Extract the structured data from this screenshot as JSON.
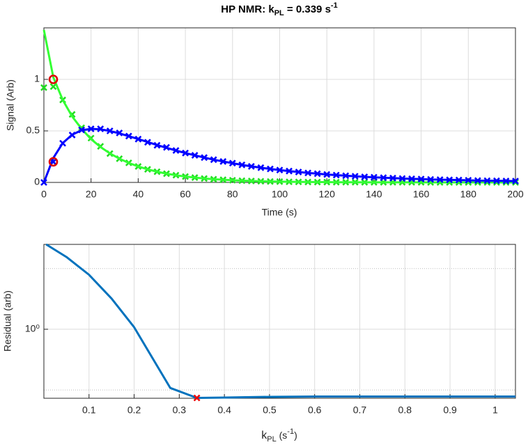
{
  "chart_data": [
    {
      "type": "line",
      "title": [
        "HP NMR: k",
        "PL",
        " = 0.339 s",
        "-1"
      ],
      "xlabel": "Time (s)",
      "ylabel": "Signal (Arb)",
      "x": [
        0,
        4,
        8,
        12,
        16,
        20,
        24,
        28,
        32,
        36,
        40,
        44,
        48,
        52,
        56,
        60,
        64,
        68,
        72,
        76,
        80,
        84,
        88,
        92,
        96,
        100,
        104,
        108,
        112,
        116,
        120,
        124,
        128,
        132,
        136,
        140,
        144,
        148,
        152,
        156,
        160,
        164,
        168,
        172,
        176,
        180,
        184,
        188,
        192,
        196,
        200
      ],
      "xlim": [
        0,
        200
      ],
      "xticks": [
        0,
        20,
        40,
        60,
        80,
        100,
        120,
        140,
        160,
        180,
        200
      ],
      "ylim": [
        0,
        1.5
      ],
      "yticks": [
        0,
        0.5,
        1
      ],
      "grid": true,
      "series": [
        {
          "color": "#22dd22",
          "marker": "x",
          "values": [
            0.92,
            0.93,
            0.8,
            0.66,
            0.53,
            0.43,
            0.35,
            0.28,
            0.23,
            0.19,
            0.155,
            0.127,
            0.104,
            0.085,
            0.07,
            0.057,
            0.047,
            0.038,
            0.031,
            0.026,
            0.021,
            0.017,
            0.014,
            0.011,
            0.009,
            0.008,
            0.006,
            0.005,
            0.004,
            0.003,
            0.003,
            0.002,
            0.002,
            0.002,
            0.001,
            0.001,
            0.001,
            0.001,
            0.001,
            0.001,
            0.001,
            0,
            0,
            0,
            0,
            0,
            0,
            0,
            0,
            0,
            0
          ]
        },
        {
          "color": "#33ff33",
          "marker": "line",
          "values": [
            1.48,
            1.02,
            0.8,
            0.64,
            0.52,
            0.42,
            0.344,
            0.282,
            0.231,
            0.189,
            0.155,
            0.127,
            0.104,
            0.085,
            0.07,
            0.057,
            0.047,
            0.038,
            0.031,
            0.026,
            0.021,
            0.017,
            0.014,
            0.011,
            0.009,
            0.008,
            0.006,
            0.005,
            0.004,
            0.003,
            0.003,
            0.002,
            0.002,
            0.002,
            0.001,
            0.001,
            0.001,
            0.001,
            0.001,
            0.001,
            0.001,
            0,
            0,
            0,
            0,
            0,
            0,
            0,
            0,
            0,
            0
          ]
        },
        {
          "color": "#0000ff",
          "marker": "line",
          "values": [
            0,
            0.237,
            0.382,
            0.464,
            0.506,
            0.52,
            0.515,
            0.499,
            0.476,
            0.449,
            0.421,
            0.392,
            0.363,
            0.336,
            0.31,
            0.285,
            0.263,
            0.241,
            0.221,
            0.203,
            0.187,
            0.17,
            0.156,
            0.143,
            0.131,
            0.12,
            0.11,
            0.101,
            0.092,
            0.085,
            0.077,
            0.071,
            0.065,
            0.06,
            0.054,
            0.05,
            0.046,
            0.042,
            0.038,
            0.035,
            0.033,
            0.029,
            0.027,
            0.025,
            0.023,
            0.021,
            0.018,
            0.017,
            0.016,
            0.014,
            0.013
          ]
        },
        {
          "color": "#0000ff",
          "marker": "x",
          "values": [
            0,
            0.2,
            0.38,
            0.46,
            0.51,
            0.52,
            0.52,
            0.5,
            0.48,
            0.45,
            0.42,
            0.39,
            0.36,
            0.34,
            0.31,
            0.285,
            0.263,
            0.241,
            0.221,
            0.203,
            0.187,
            0.17,
            0.156,
            0.143,
            0.131,
            0.12,
            0.11,
            0.101,
            0.092,
            0.085,
            0.077,
            0.071,
            0.065,
            0.06,
            0.054,
            0.05,
            0.046,
            0.042,
            0.038,
            0.035,
            0.033,
            0.029,
            0.027,
            0.025,
            0.023,
            0.021,
            0.018,
            0.017,
            0.016,
            0.014,
            0.013
          ]
        },
        {
          "color": "#dd0000",
          "marker": "o",
          "x": [
            4,
            4
          ],
          "values": [
            1,
            0.2
          ]
        }
      ]
    },
    {
      "type": "line",
      "xlabel": [
        "k",
        "PL",
        " (s",
        "-1",
        ")"
      ],
      "ylabel": "Residual (arb)",
      "xlim": [
        0,
        1.045
      ],
      "xticks": [
        0.1,
        0.2,
        0.3,
        0.4,
        0.5,
        0.6,
        0.7,
        0.8,
        0.9,
        1
      ],
      "ylim": [
        0.073,
        25
      ],
      "yscale": "log",
      "yticks": [
        {
          "value": 1,
          "label": "10⁰"
        }
      ],
      "minor_grid": [
        0.1,
        10
      ],
      "grid": true,
      "series": [
        {
          "color": "#0072bd",
          "marker": "line",
          "x": [
            0.005,
            0.05,
            0.1,
            0.15,
            0.2,
            0.28,
            0.339,
            0.4,
            0.5,
            0.6,
            0.8,
            1.045
          ],
          "values": [
            25,
            15.5,
            7.9,
            3.2,
            1.08,
            0.108,
            0.074,
            0.075,
            0.077,
            0.078,
            0.078,
            0.078
          ]
        },
        {
          "color": "#ee0000",
          "marker": "x",
          "x": [
            0.339
          ],
          "values": [
            0.074
          ]
        }
      ]
    }
  ]
}
